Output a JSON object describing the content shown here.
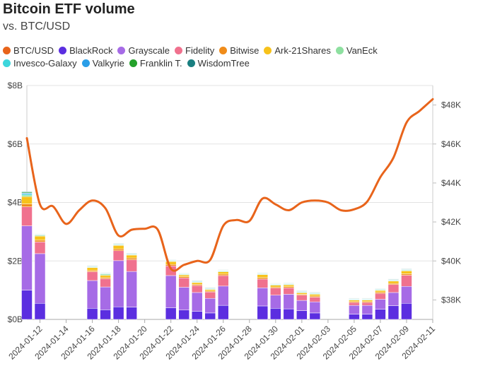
{
  "title": "Bitcoin ETF volume",
  "subtitle": "vs. BTC/USD",
  "legend": [
    {
      "name": "BTC/USD",
      "color": "#e8641b"
    },
    {
      "name": "BlackRock",
      "color": "#5b2ee0"
    },
    {
      "name": "Grayscale",
      "color": "#a66be6"
    },
    {
      "name": "Fidelity",
      "color": "#f0718e"
    },
    {
      "name": "Bitwise",
      "color": "#f08c1a"
    },
    {
      "name": "Ark-21Shares",
      "color": "#f7c21b"
    },
    {
      "name": "VanEck",
      "color": "#8ee0a0"
    },
    {
      "name": "Invesco-Galaxy",
      "color": "#3dd6dc"
    },
    {
      "name": "Valkyrie",
      "color": "#2a9ee8"
    },
    {
      "name": "Franklin T.",
      "color": "#24a12b"
    },
    {
      "name": "WisdomTree",
      "color": "#1a7f80"
    }
  ],
  "chart_data": {
    "type": "bar",
    "stacked": true,
    "title": "Bitcoin ETF volume",
    "subtitle": "vs. BTC/USD",
    "x_ticks": [
      "2024-01-12",
      "2024-01-14",
      "2024-01-16",
      "2024-01-18",
      "2024-01-20",
      "2024-01-22",
      "2024-01-24",
      "2024-01-26",
      "2024-01-28",
      "2024-01-30",
      "2024-02-01",
      "2024-02-03",
      "2024-02-05",
      "2024-02-07",
      "2024-02-09",
      "2024-02-11"
    ],
    "y_left": {
      "ticks": [
        "$0B",
        "$2B",
        "$4B",
        "$6B",
        "$8B"
      ],
      "range": [
        0,
        8
      ]
    },
    "y_right": {
      "ticks": [
        "$38K",
        "$40K",
        "$42K",
        "$44K",
        "$46K",
        "$48K"
      ],
      "range": [
        37000,
        49000
      ]
    },
    "grid": true,
    "legend_position": "top",
    "bar_dates": [
      "2024-01-11",
      "2024-01-12",
      "2024-01-16",
      "2024-01-17",
      "2024-01-18",
      "2024-01-19",
      "2024-01-22",
      "2024-01-23",
      "2024-01-24",
      "2024-01-25",
      "2024-01-26",
      "2024-01-29",
      "2024-01-30",
      "2024-01-31",
      "2024-02-01",
      "2024-02-02",
      "2024-02-05",
      "2024-02-06",
      "2024-02-07",
      "2024-02-08",
      "2024-02-09"
    ],
    "series": [
      {
        "name": "BlackRock",
        "color": "#5b2ee0",
        "values": [
          1.0,
          0.55,
          0.38,
          0.33,
          0.43,
          0.42,
          0.4,
          0.32,
          0.28,
          0.22,
          0.48,
          0.46,
          0.38,
          0.36,
          0.3,
          0.22,
          0.18,
          0.18,
          0.35,
          0.47,
          0.55
        ]
      },
      {
        "name": "Grayscale",
        "color": "#a66be6",
        "values": [
          2.2,
          1.7,
          0.95,
          0.78,
          1.58,
          1.22,
          1.1,
          0.78,
          0.64,
          0.5,
          0.66,
          0.62,
          0.45,
          0.5,
          0.35,
          0.38,
          0.3,
          0.3,
          0.34,
          0.45,
          0.58
        ]
      },
      {
        "name": "Fidelity",
        "color": "#f0718e",
        "values": [
          0.65,
          0.4,
          0.3,
          0.28,
          0.34,
          0.4,
          0.33,
          0.32,
          0.24,
          0.22,
          0.36,
          0.3,
          0.24,
          0.22,
          0.18,
          0.16,
          0.1,
          0.1,
          0.2,
          0.27,
          0.38
        ]
      },
      {
        "name": "Bitwise",
        "color": "#f08c1a",
        "values": [
          0.1,
          0.06,
          0.04,
          0.04,
          0.06,
          0.06,
          0.05,
          0.04,
          0.04,
          0.03,
          0.05,
          0.05,
          0.04,
          0.04,
          0.03,
          0.04,
          0.03,
          0.03,
          0.04,
          0.04,
          0.05
        ]
      },
      {
        "name": "Ark-21Shares",
        "color": "#f7c21b",
        "values": [
          0.25,
          0.14,
          0.1,
          0.08,
          0.12,
          0.1,
          0.1,
          0.06,
          0.06,
          0.05,
          0.08,
          0.1,
          0.06,
          0.06,
          0.05,
          0.06,
          0.05,
          0.05,
          0.06,
          0.08,
          0.1
        ]
      },
      {
        "name": "VanEck",
        "color": "#8ee0a0",
        "values": [
          0.05,
          0.03,
          0.02,
          0.04,
          0.02,
          0.02,
          0.02,
          0.02,
          0.02,
          0.02,
          0.02,
          0.02,
          0.02,
          0.02,
          0.02,
          0.02,
          0.02,
          0.02,
          0.02,
          0.02,
          0.02
        ]
      },
      {
        "name": "Invesco-Galaxy",
        "color": "#3dd6dc",
        "values": [
          0.04,
          0.02,
          0.02,
          0.02,
          0.02,
          0.02,
          0.02,
          0.02,
          0.02,
          0.02,
          0.02,
          0.02,
          0.02,
          0.02,
          0.02,
          0.02,
          0.02,
          0.02,
          0.02,
          0.02,
          0.02
        ]
      },
      {
        "name": "Valkyrie",
        "color": "#2a9ee8",
        "values": [
          0.03,
          0.01,
          0.01,
          0.01,
          0.01,
          0.01,
          0.01,
          0.01,
          0.01,
          0.01,
          0.01,
          0.01,
          0.01,
          0.01,
          0.01,
          0.01,
          0.01,
          0.01,
          0.01,
          0.01,
          0.01
        ]
      },
      {
        "name": "Franklin T.",
        "color": "#24a12b",
        "values": [
          0.03,
          0.01,
          0.01,
          0.01,
          0.01,
          0.01,
          0.01,
          0.01,
          0.01,
          0.01,
          0.01,
          0.01,
          0.01,
          0.01,
          0.01,
          0.01,
          0.01,
          0.01,
          0.01,
          0.01,
          0.01
        ]
      },
      {
        "name": "WisdomTree",
        "color": "#1a7f80",
        "values": [
          0.02,
          0.01,
          0.01,
          0.01,
          0.01,
          0.01,
          0.01,
          0.01,
          0.01,
          0.01,
          0.01,
          0.01,
          0.01,
          0.01,
          0.01,
          0.01,
          0.01,
          0.01,
          0.01,
          0.01,
          0.01
        ]
      }
    ],
    "line": {
      "name": "BTC/USD",
      "color": "#e8641b",
      "axis": "right",
      "x": [
        "2024-01-11",
        "2024-01-12",
        "2024-01-13",
        "2024-01-14",
        "2024-01-15",
        "2024-01-16",
        "2024-01-17",
        "2024-01-18",
        "2024-01-19",
        "2024-01-20",
        "2024-01-21",
        "2024-01-22",
        "2024-01-23",
        "2024-01-24",
        "2024-01-25",
        "2024-01-26",
        "2024-01-27",
        "2024-01-28",
        "2024-01-29",
        "2024-01-30",
        "2024-01-31",
        "2024-02-01",
        "2024-02-02",
        "2024-02-03",
        "2024-02-04",
        "2024-02-05",
        "2024-02-06",
        "2024-02-07",
        "2024-02-08",
        "2024-02-09",
        "2024-02-10",
        "2024-02-11"
      ],
      "y": [
        46300,
        42900,
        42800,
        41900,
        42600,
        43100,
        42700,
        41300,
        41600,
        41650,
        41600,
        39600,
        39800,
        40000,
        40050,
        41800,
        42100,
        42050,
        43200,
        42900,
        42600,
        43000,
        43100,
        43000,
        42600,
        42650,
        43050,
        44300,
        45300,
        47100,
        47700,
        48300
      ]
    }
  }
}
